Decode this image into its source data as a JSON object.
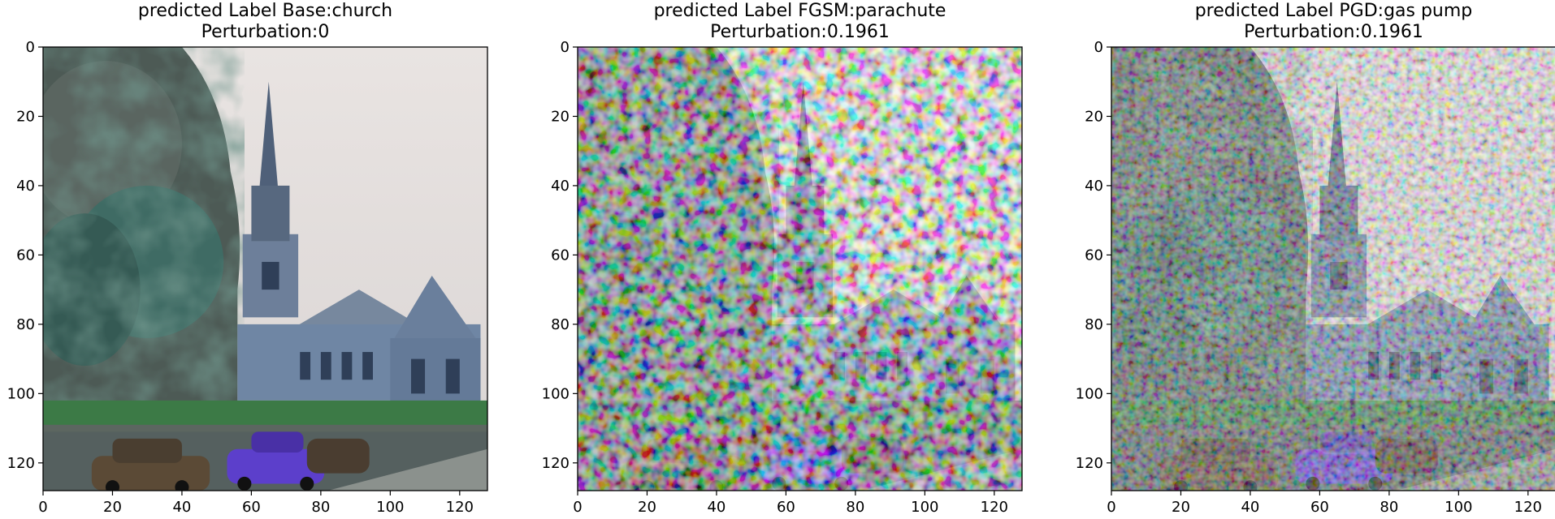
{
  "chart_data": [
    {
      "type": "image",
      "title": "predicted Label Base:church",
      "subtitle": "Perturbation:0",
      "xlim": [
        0,
        128
      ],
      "ylim": [
        128,
        0
      ],
      "xticks": [
        0,
        20,
        40,
        60,
        80,
        100,
        120
      ],
      "yticks": [
        0,
        20,
        40,
        60,
        80,
        100,
        120
      ],
      "xtick_labels": [
        "0",
        "20",
        "40",
        "60",
        "80",
        "100",
        "120"
      ],
      "ytick_labels": [
        "0",
        "20",
        "40",
        "60",
        "80",
        "100",
        "120"
      ],
      "content": "church-photo"
    },
    {
      "type": "image",
      "title": "predicted Label FGSM:parachute",
      "subtitle": "Perturbation:0.1961",
      "xlim": [
        0,
        128
      ],
      "ylim": [
        128,
        0
      ],
      "xticks": [
        0,
        20,
        40,
        60,
        80,
        100,
        120
      ],
      "yticks": [
        0,
        20,
        40,
        60,
        80,
        100,
        120
      ],
      "xtick_labels": [
        "0",
        "20",
        "40",
        "60",
        "80",
        "100",
        "120"
      ],
      "ytick_labels": [
        "0",
        "20",
        "40",
        "60",
        "80",
        "100",
        "120"
      ],
      "content": "fgsm-adversarial-image"
    },
    {
      "type": "image",
      "title": "predicted Label PGD:gas pump",
      "subtitle": "Perturbation:0.1961",
      "xlim": [
        0,
        128
      ],
      "ylim": [
        128,
        0
      ],
      "xticks": [
        0,
        20,
        40,
        60,
        80,
        100,
        120
      ],
      "yticks": [
        0,
        20,
        40,
        60,
        80,
        100,
        120
      ],
      "xtick_labels": [
        "0",
        "20",
        "40",
        "60",
        "80",
        "100",
        "120"
      ],
      "ytick_labels": [
        "0",
        "20",
        "40",
        "60",
        "80",
        "100",
        "120"
      ],
      "content": "pgd-adversarial-image"
    }
  ]
}
